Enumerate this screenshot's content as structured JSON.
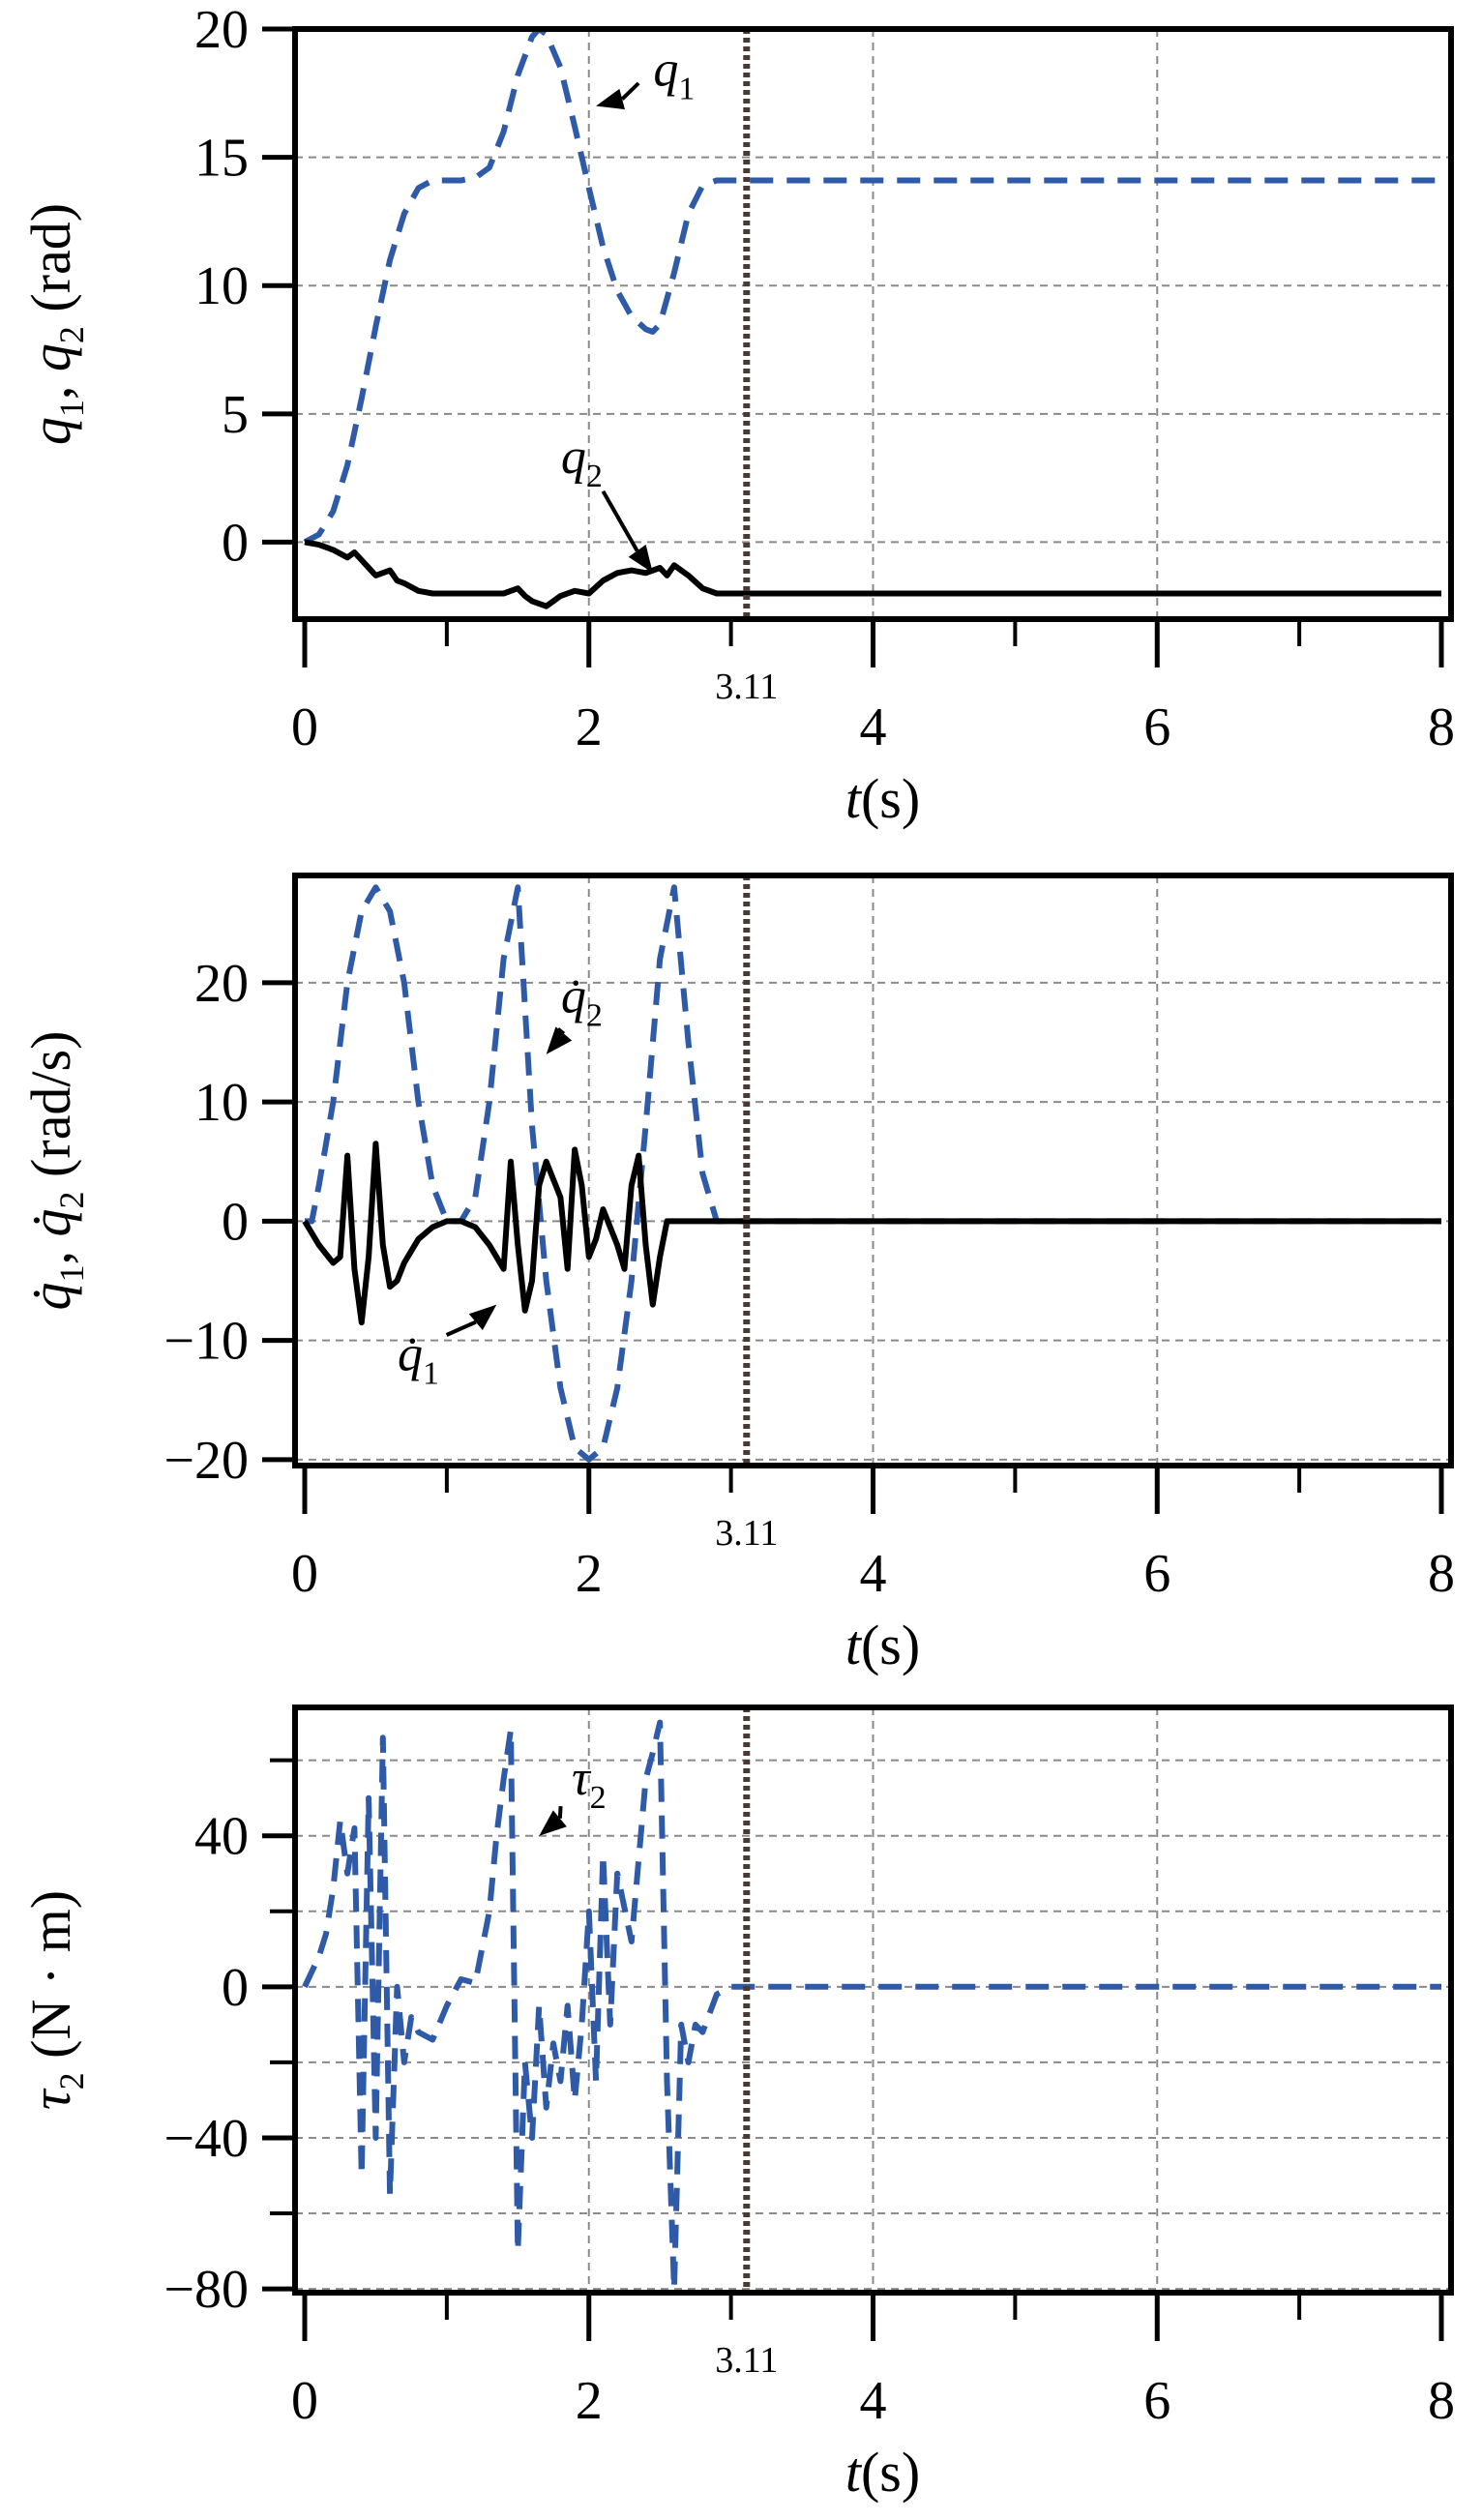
{
  "colors": {
    "blue": "#2E5AA8",
    "black": "#000000",
    "grid": "#8a8a8a",
    "marker": "#4a3a32"
  },
  "chart_data": [
    {
      "type": "line",
      "xlabel": "t(s)",
      "ylabel": "q1, q2 (rad)",
      "xlim": [
        0,
        8
      ],
      "ylim": [
        -3,
        20
      ],
      "xticks": [
        "0",
        "2",
        "4",
        "6",
        "8"
      ],
      "yticks": [
        "0",
        "5",
        "10",
        "15",
        "20"
      ],
      "marker_line": {
        "x": 3.11,
        "label": "3.11"
      },
      "series": [
        {
          "name": "q1",
          "style": "dashed",
          "color": "blue",
          "x": [
            0,
            0.1,
            0.2,
            0.3,
            0.4,
            0.5,
            0.6,
            0.7,
            0.8,
            0.9,
            1.0,
            1.1,
            1.2,
            1.3,
            1.4,
            1.5,
            1.6,
            1.65,
            1.7,
            1.8,
            1.9,
            2.0,
            2.1,
            2.2,
            2.3,
            2.4,
            2.45,
            2.5,
            2.6,
            2.7,
            2.8,
            2.9,
            3.0,
            3.1,
            8.0
          ],
          "values": [
            0,
            0.3,
            1.2,
            3.0,
            5.6,
            8.4,
            11.0,
            12.8,
            13.8,
            14.1,
            14.1,
            14.1,
            14.2,
            14.6,
            16.0,
            18.2,
            19.7,
            20.0,
            19.8,
            18.5,
            16.2,
            13.8,
            11.5,
            9.8,
            8.8,
            8.3,
            8.2,
            8.5,
            10.5,
            12.8,
            13.9,
            14.1,
            14.1,
            14.1,
            14.1
          ]
        },
        {
          "name": "q2",
          "style": "solid",
          "color": "black",
          "x": [
            0,
            0.1,
            0.2,
            0.3,
            0.35,
            0.4,
            0.5,
            0.6,
            0.65,
            0.7,
            0.8,
            0.9,
            1.0,
            1.2,
            1.4,
            1.5,
            1.55,
            1.6,
            1.7,
            1.8,
            1.9,
            2.0,
            2.1,
            2.2,
            2.3,
            2.4,
            2.5,
            2.55,
            2.6,
            2.7,
            2.8,
            2.9,
            3.0,
            8.0
          ],
          "values": [
            0,
            -0.1,
            -0.3,
            -0.6,
            -0.4,
            -0.7,
            -1.3,
            -1.1,
            -1.5,
            -1.6,
            -1.9,
            -2.0,
            -2.0,
            -2.0,
            -2.0,
            -1.8,
            -2.1,
            -2.3,
            -2.5,
            -2.1,
            -1.9,
            -2.0,
            -1.5,
            -1.2,
            -1.1,
            -1.2,
            -1.0,
            -1.3,
            -0.9,
            -1.3,
            -1.8,
            -2.0,
            -2.0,
            -2.0
          ]
        }
      ],
      "annotations": [
        {
          "label": "q",
          "sub": "1",
          "text_at": [
            2.6,
            17.8
          ],
          "point_at": [
            2.05,
            17.0
          ]
        },
        {
          "label": "q",
          "sub": "2",
          "text_at": [
            1.95,
            2.7
          ],
          "point_at": [
            2.45,
            -1.2
          ]
        }
      ]
    },
    {
      "type": "line",
      "xlabel": "t(s)",
      "ylabel": "q̇1, q̇2 (rad/s)",
      "xlim": [
        0,
        8
      ],
      "ylim": [
        -20.5,
        29
      ],
      "xticks": [
        "0",
        "2",
        "4",
        "6",
        "8"
      ],
      "yticks": [
        "−20",
        "−10",
        "0",
        "10",
        "20"
      ],
      "marker_line": {
        "x": 3.11,
        "label": "3.11"
      },
      "series": [
        {
          "name": "q̇2",
          "style": "dashed",
          "color": "blue",
          "x": [
            0,
            0.05,
            0.1,
            0.2,
            0.3,
            0.4,
            0.5,
            0.6,
            0.7,
            0.8,
            0.9,
            1.0,
            1.1,
            1.2,
            1.3,
            1.4,
            1.5,
            1.6,
            1.7,
            1.8,
            1.9,
            2.0,
            2.1,
            2.2,
            2.3,
            2.4,
            2.5,
            2.6,
            2.7,
            2.8,
            2.9,
            3.0,
            8.0
          ],
          "values": [
            0,
            0,
            3,
            10,
            20,
            26,
            28,
            26,
            20,
            10,
            3,
            0,
            0,
            2,
            10,
            22,
            28,
            8,
            -5,
            -14,
            -19,
            -20,
            -19,
            -14,
            -5,
            8,
            22,
            28,
            15,
            4,
            0,
            0,
            0
          ]
        },
        {
          "name": "q̇1",
          "style": "solid",
          "color": "black",
          "x": [
            0,
            0.1,
            0.2,
            0.25,
            0.3,
            0.35,
            0.4,
            0.45,
            0.5,
            0.55,
            0.6,
            0.65,
            0.7,
            0.8,
            0.9,
            1.0,
            1.1,
            1.2,
            1.3,
            1.4,
            1.45,
            1.5,
            1.55,
            1.6,
            1.65,
            1.7,
            1.8,
            1.85,
            1.9,
            1.95,
            2.0,
            2.05,
            2.1,
            2.2,
            2.25,
            2.3,
            2.35,
            2.4,
            2.45,
            2.5,
            2.55,
            2.6,
            2.65,
            2.7,
            2.8,
            2.9,
            3.0,
            8.0
          ],
          "values": [
            0,
            -2,
            -3.5,
            -3,
            5.5,
            -4,
            -8.5,
            -3,
            6.5,
            -2,
            -5.5,
            -5,
            -3.5,
            -1.5,
            -0.5,
            0,
            0,
            -0.5,
            -2,
            -4,
            5,
            -2,
            -7.5,
            -5,
            3,
            5,
            2,
            -4,
            6,
            3,
            -3,
            -1.5,
            1,
            -2,
            -4,
            3,
            5.5,
            -2,
            -7,
            -3,
            0,
            0,
            0,
            0,
            0,
            0,
            0,
            0
          ]
        }
      ],
      "annotations": [
        {
          "label": "q̇",
          "sub": "2",
          "text_at": [
            1.95,
            17.5
          ],
          "point_at": [
            1.7,
            14.0
          ]
        },
        {
          "label": "q̇",
          "sub": "1",
          "text_at": [
            0.8,
            -12.5
          ],
          "point_at": [
            1.35,
            -7.0
          ]
        }
      ]
    },
    {
      "type": "line",
      "xlabel": "t(s)",
      "ylabel": "τ2 (N·m)",
      "xlim": [
        0,
        8
      ],
      "ylim": [
        -81,
        74
      ],
      "xticks": [
        "0",
        "2",
        "4",
        "6",
        "8"
      ],
      "yticks": [
        "−80",
        "−40",
        "0",
        "40"
      ],
      "marker_line": {
        "x": 3.11,
        "label": "3.11"
      },
      "series": [
        {
          "name": "τ2",
          "style": "dashed",
          "color": "blue",
          "x": [
            0,
            0.05,
            0.1,
            0.15,
            0.2,
            0.25,
            0.3,
            0.35,
            0.4,
            0.45,
            0.5,
            0.55,
            0.6,
            0.65,
            0.7,
            0.75,
            0.8,
            0.9,
            1.0,
            1.1,
            1.2,
            1.3,
            1.35,
            1.4,
            1.45,
            1.5,
            1.55,
            1.6,
            1.65,
            1.7,
            1.75,
            1.8,
            1.85,
            1.9,
            1.95,
            2.0,
            2.05,
            2.1,
            2.15,
            2.2,
            2.3,
            2.4,
            2.45,
            2.5,
            2.55,
            2.6,
            2.65,
            2.7,
            2.75,
            2.8,
            2.9,
            3.0,
            8.0
          ],
          "values": [
            0,
            4,
            8,
            14,
            26,
            44,
            30,
            42,
            -50,
            50,
            -40,
            66,
            -55,
            0,
            -20,
            -8,
            -12,
            -14,
            -5,
            2,
            1,
            20,
            40,
            55,
            68,
            -70,
            -20,
            -40,
            -5,
            -32,
            -15,
            -25,
            -5,
            -30,
            -10,
            20,
            -25,
            35,
            -10,
            30,
            12,
            55,
            62,
            70,
            -25,
            -80,
            -10,
            -20,
            -10,
            -12,
            -2,
            0,
            0
          ]
        }
      ],
      "annotations": [
        {
          "label": "τ",
          "sub": "2",
          "text_at": [
            2.0,
            51
          ],
          "point_at": [
            1.65,
            40
          ]
        }
      ]
    }
  ]
}
